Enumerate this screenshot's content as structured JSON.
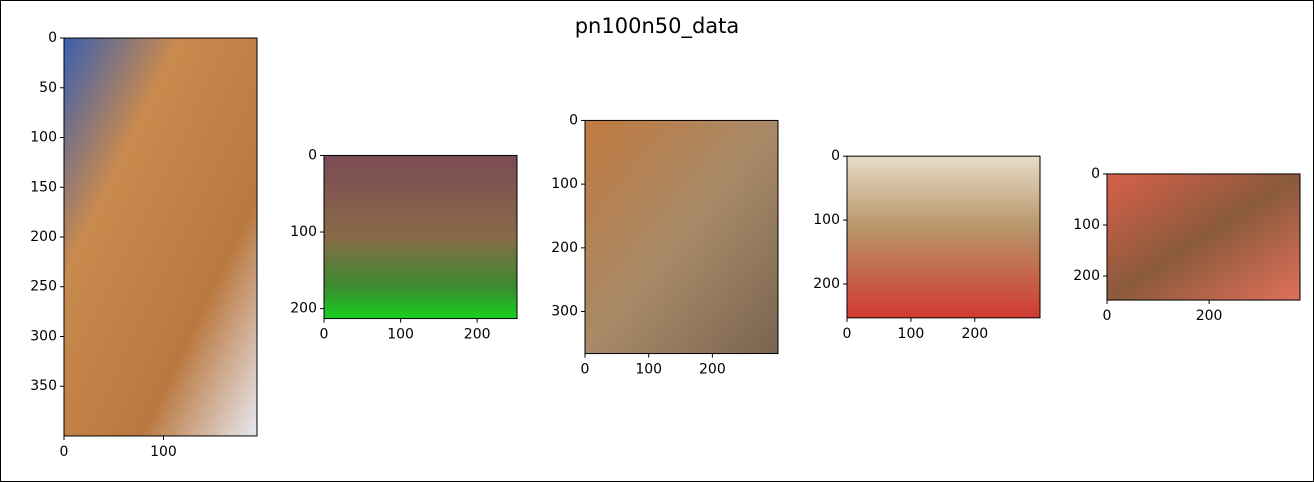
{
  "title": "pn100n50_data",
  "chart_data": [
    {
      "type": "image",
      "xlim": [
        0,
        194
      ],
      "ylim": [
        400,
        0
      ],
      "xticks": [
        0,
        100
      ],
      "yticks": [
        0,
        50,
        100,
        150,
        200,
        250,
        300,
        350
      ]
    },
    {
      "type": "image",
      "xlim": [
        0,
        252
      ],
      "ylim": [
        213,
        0
      ],
      "xticks": [
        0,
        100,
        200
      ],
      "yticks": [
        0,
        100,
        200
      ]
    },
    {
      "type": "image",
      "xlim": [
        0,
        303
      ],
      "ylim": [
        366,
        0
      ],
      "xticks": [
        0,
        100,
        200
      ],
      "yticks": [
        0,
        100,
        200,
        300
      ]
    },
    {
      "type": "image",
      "xlim": [
        0,
        302
      ],
      "ylim": [
        253,
        0
      ],
      "xticks": [
        0,
        100,
        200
      ],
      "yticks": [
        0,
        100,
        200
      ]
    },
    {
      "type": "image",
      "xlim": [
        0,
        378
      ],
      "ylim": [
        247,
        0
      ],
      "xticks": [
        0,
        200
      ],
      "yticks": [
        0,
        100,
        200
      ]
    }
  ]
}
